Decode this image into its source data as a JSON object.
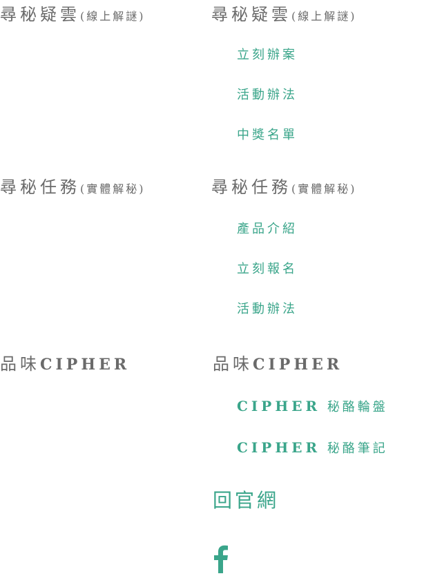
{
  "menu": {
    "groups": [
      {
        "title": "尋秘疑雲",
        "subtitle": "(線上解謎)",
        "items": [
          "立刻辦案",
          "活動辦法",
          "中獎名單"
        ]
      },
      {
        "title": "尋秘任務",
        "subtitle": "(實體解秘)",
        "items": [
          "產品介紹",
          "立刻報名",
          "活動辦法"
        ]
      },
      {
        "title_cjk": "品味",
        "title_latin": "CIPHER",
        "items": [
          {
            "latin": "CIPHER",
            "cjk": "秘酪輪盤"
          },
          {
            "latin": "CIPHER",
            "cjk": "秘酪筆記"
          }
        ]
      }
    ],
    "home": "回官網",
    "facebook_icon": "facebook-icon"
  },
  "colors": {
    "heading": "#6a6a6a",
    "accent": "#3aa58a"
  }
}
